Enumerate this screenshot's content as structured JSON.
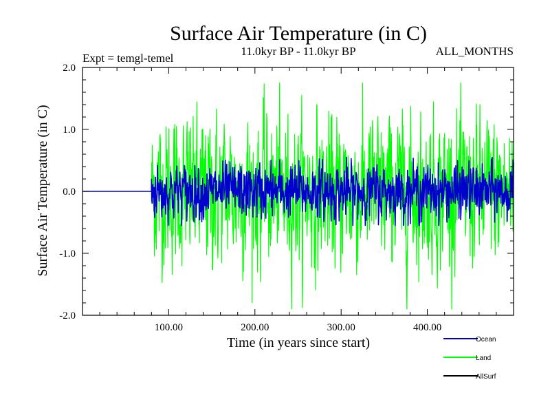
{
  "chart_data": {
    "type": "line",
    "title": "Surface Air Temperature (in C)",
    "subtitle_left": "Expt = temgl-temel",
    "subtitle_center": "11.0kyr BP - 11.0kyr BP",
    "subtitle_right": "ALL_MONTHS",
    "xlabel": "Time (in years since start)",
    "ylabel": "Surface Air Temperature (in C)",
    "xlim": [
      0,
      500
    ],
    "ylim": [
      -2.0,
      2.0
    ],
    "xticks": [
      100,
      200,
      300,
      400
    ],
    "xtick_labels": [
      "100.00",
      "200.00",
      "300.00",
      "400.00"
    ],
    "yticks": [
      -2.0,
      -1.0,
      0.0,
      1.0,
      2.0
    ],
    "ytick_labels": [
      "-2.0",
      "-1.0",
      "0.0",
      "1.0",
      "2.0"
    ],
    "legend_position": "bottom-right",
    "series": [
      {
        "name": "Ocean",
        "color": "#0000cc",
        "start": 80,
        "end": 500,
        "zero_before_start": true,
        "amplitude": 0.2,
        "min": -0.55,
        "max": 0.55
      },
      {
        "name": "Land",
        "color": "#00ff00",
        "start": 80,
        "end": 500,
        "zero_before_start": false,
        "amplitude": 0.55,
        "min": -1.9,
        "max": 1.75
      },
      {
        "name": "AllSurf",
        "color": "#000000",
        "start": 80,
        "end": 500,
        "zero_before_start": false,
        "amplitude": 0.0,
        "min": 0,
        "max": 0
      }
    ]
  }
}
